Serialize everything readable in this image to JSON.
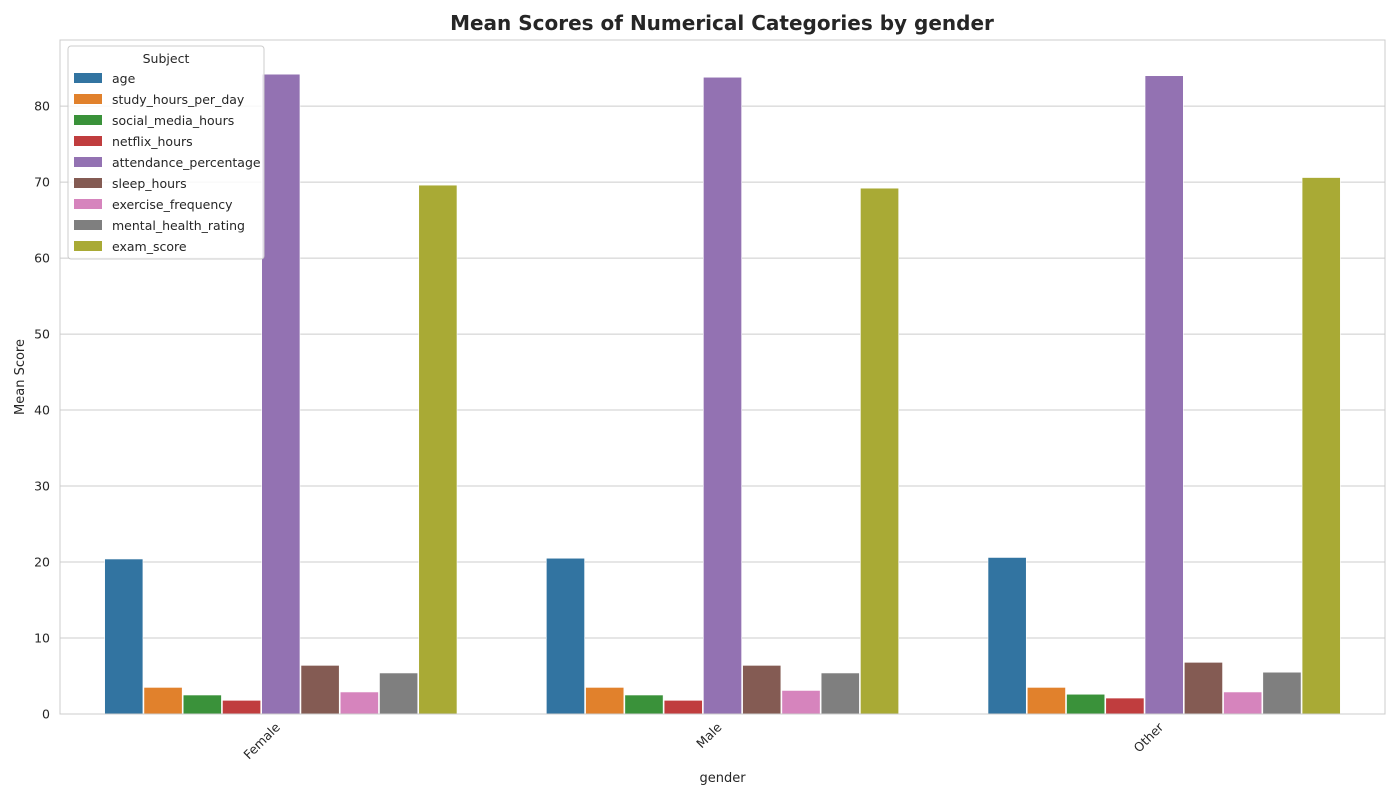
{
  "chart_data": {
    "type": "bar",
    "title": "Mean Scores of Numerical Categories by gender",
    "xlabel": "gender",
    "ylabel": "Mean Score",
    "categories": [
      "Female",
      "Male",
      "Other"
    ],
    "ylim": [
      0,
      88.7
    ],
    "yticks": [
      0,
      10,
      20,
      30,
      40,
      50,
      60,
      70,
      80
    ],
    "grid": true,
    "legend": {
      "title": "Subject",
      "placement": "top-left"
    },
    "series": [
      {
        "name": "age",
        "color": "#3274a1",
        "values": [
          20.4,
          20.5,
          20.6
        ]
      },
      {
        "name": "study_hours_per_day",
        "color": "#e1812c",
        "values": [
          3.5,
          3.5,
          3.5
        ]
      },
      {
        "name": "social_media_hours",
        "color": "#3a923a",
        "values": [
          2.5,
          2.5,
          2.6
        ]
      },
      {
        "name": "netflix_hours",
        "color": "#c03d3e",
        "values": [
          1.8,
          1.8,
          2.1
        ]
      },
      {
        "name": "attendance_percentage",
        "color": "#9372b2",
        "values": [
          84.2,
          83.8,
          84.0
        ]
      },
      {
        "name": "sleep_hours",
        "color": "#845b53",
        "values": [
          6.4,
          6.4,
          6.8
        ]
      },
      {
        "name": "exercise_frequency",
        "color": "#d684bd",
        "values": [
          2.9,
          3.1,
          2.9
        ]
      },
      {
        "name": "mental_health_rating",
        "color": "#7f7f7f",
        "values": [
          5.4,
          5.4,
          5.5
        ]
      },
      {
        "name": "exam_score",
        "color": "#a9aa35",
        "values": [
          69.6,
          69.2,
          70.6
        ]
      }
    ]
  }
}
